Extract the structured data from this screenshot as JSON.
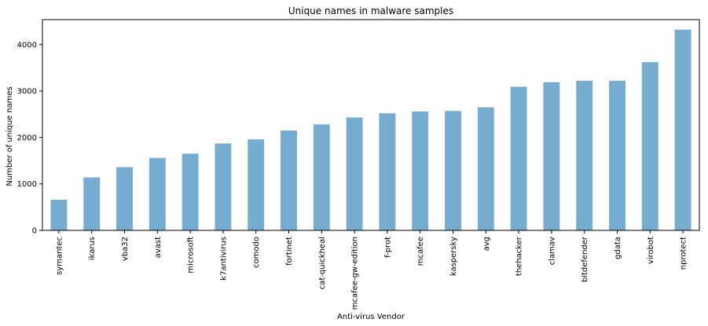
{
  "chart_data": {
    "type": "bar",
    "title": "Unique names in malware samples",
    "xlabel": "Anti-virus Vendor",
    "ylabel": "Number of unique names",
    "categories": [
      "symantec",
      "ikarus",
      "vba32",
      "avast",
      "microsoft",
      "k7antivirus",
      "comodo",
      "fortinet",
      "cat-quickheal",
      "mcafee-gw-edition",
      "f-prot",
      "mcafee",
      "kaspersky",
      "avg",
      "thehacker",
      "clamav",
      "bitdefender",
      "gdata",
      "virobot",
      "nprotect"
    ],
    "values": [
      660,
      1140,
      1360,
      1560,
      1650,
      1870,
      1960,
      2150,
      2280,
      2430,
      2520,
      2560,
      2570,
      2650,
      3090,
      3190,
      3220,
      3220,
      3620,
      4320
    ],
    "yticks": [
      0,
      1000,
      2000,
      3000,
      4000
    ],
    "ylim": [
      0,
      4536
    ],
    "grid": false,
    "legend": "none",
    "bar_color": "#77acd1",
    "axis_color": "#000000"
  }
}
